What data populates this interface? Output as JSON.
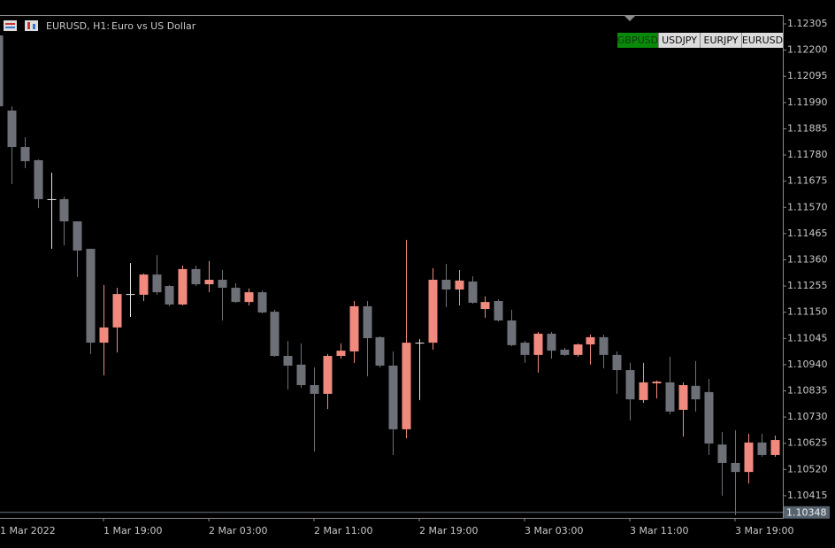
{
  "chart_data": {
    "type": "candlestick",
    "title": "EURUSD, H1:",
    "subtitle": "Euro vs US Dollar",
    "categories": [
      "1 Mar 2022",
      null,
      null,
      null,
      null,
      null,
      null,
      null,
      "1 Mar 19:00",
      null,
      null,
      null,
      null,
      null,
      null,
      null,
      "2 Mar 03:00",
      null,
      null,
      null,
      null,
      null,
      null,
      null,
      "2 Mar 11:00",
      null,
      null,
      null,
      null,
      null,
      null,
      null,
      "2 Mar 19:00",
      null,
      null,
      null,
      null,
      null,
      null,
      null,
      "3 Mar 03:00",
      null,
      null,
      null,
      null,
      null,
      null,
      null,
      "3 Mar 11:00",
      null,
      null,
      null,
      null,
      null,
      null,
      null,
      "3 Mar 19:00",
      null,
      null,
      null
    ],
    "open": [
      1.12259,
      1.11958,
      1.11812,
      1.11759,
      1.11603,
      1.11603,
      1.11514,
      1.11404,
      1.11028,
      1.11089,
      1.11223,
      1.1122,
      1.11301,
      1.11255,
      1.11181,
      1.11323,
      1.11262,
      1.1128,
      1.11248,
      1.11191,
      1.1123,
      1.11152,
      1.10975,
      1.1094,
      1.10858,
      1.10823,
      1.10975,
      1.10993,
      1.11174,
      1.1105,
      1.10936,
      1.10681,
      1.11028,
      1.11028,
      1.1128,
      1.11241,
      1.11273,
      1.11163,
      1.11195,
      1.11117,
      1.11028,
      1.10979,
      1.11064,
      1.11,
      1.10979,
      1.11021,
      1.1105,
      1.10979,
      1.10918,
      1.10798,
      1.10865,
      1.10869,
      1.10759,
      1.10855,
      1.1083,
      1.1062,
      1.10546,
      1.1051,
      1.10628,
      1.10578
    ],
    "high": [
      1.12277,
      1.11975,
      1.11851,
      1.11762,
      1.11709,
      1.11613,
      1.11514,
      1.11404,
      1.11259,
      1.11248,
      1.11347,
      1.11305,
      1.11379,
      1.11259,
      1.11337,
      1.11337,
      1.11355,
      1.11319,
      1.11266,
      1.11245,
      1.11237,
      1.1116,
      1.11035,
      1.11025,
      1.10929,
      1.10982,
      1.11025,
      1.11195,
      1.11195,
      1.11053,
      1.10993,
      1.1144,
      1.11042,
      1.11326,
      1.11344,
      1.11319,
      1.11294,
      1.11213,
      1.11202,
      1.1116,
      1.11035,
      1.11071,
      1.11071,
      1.11007,
      1.11025,
      1.1106,
      1.1106,
      1.10993,
      1.10947,
      1.10947,
      1.10876,
      1.10972,
      1.10869,
      1.10954,
      1.10883,
      1.1067,
      1.10677,
      1.10663,
      1.10663,
      1.10656
    ],
    "low": [
      1.11958,
      1.11663,
      1.11727,
      1.11567,
      1.11404,
      1.11418,
      1.11291,
      1.10982,
      1.10897,
      1.10989,
      1.11131,
      1.11195,
      1.1122,
      1.11174,
      1.11177,
      1.11255,
      1.1123,
      1.11117,
      1.11188,
      1.11177,
      1.11145,
      1.10972,
      1.1084,
      1.10847,
      1.10592,
      1.10762,
      1.10964,
      1.10947,
      1.10893,
      1.10929,
      1.10578,
      1.10645,
      1.10798,
      1.11,
      1.1117,
      1.11177,
      1.11184,
      1.11128,
      1.11113,
      1.11014,
      1.10947,
      1.10908,
      1.10964,
      1.10975,
      1.10972,
      1.1094,
      1.10925,
      1.10823,
      1.10716,
      1.10787,
      1.10805,
      1.10741,
      1.10652,
      1.10752,
      1.10578,
      1.10415,
      1.10337,
      1.10464,
      1.10571,
      1.10571
    ],
    "close": [
      1.11975,
      1.11812,
      1.11755,
      1.11603,
      1.11603,
      1.11514,
      1.11397,
      1.11028,
      1.11089,
      1.11223,
      1.11223,
      1.11301,
      1.1123,
      1.11181,
      1.11323,
      1.11262,
      1.1128,
      1.11248,
      1.11191,
      1.1123,
      1.11149,
      1.10975,
      1.10936,
      1.10858,
      1.10823,
      1.10975,
      1.10996,
      1.11174,
      1.11046,
      1.10936,
      1.10681,
      1.11028,
      1.11028,
      1.1128,
      1.11241,
      1.11277,
      1.11188,
      1.11191,
      1.11117,
      1.11018,
      1.10979,
      1.11064,
      1.10996,
      1.10979,
      1.11021,
      1.1105,
      1.10979,
      1.10918,
      1.10801,
      1.10869,
      1.10872,
      1.10752,
      1.10858,
      1.10801,
      1.10624,
      1.10546,
      1.1051,
      1.10628,
      1.10578,
      1.10638
    ],
    "up_color": "#f08a7e",
    "down_color": "#6d7177",
    "doji_color": "#e6e6e6",
    "ylim": [
      1.10326,
      1.12337
    ],
    "yticks": [
      1.12305,
      {
        "value": 1.122,
        "label": "1.12200"
      },
      1.12095,
      {
        "value": 1.1199,
        "label": "1.11990"
      },
      1.11885,
      {
        "value": 1.1178,
        "label": "1.11780"
      },
      1.11675,
      {
        "value": 1.1157,
        "label": "1.11570"
      },
      1.11465,
      {
        "value": 1.1136,
        "label": "1.11360"
      },
      1.11255,
      {
        "value": 1.1115,
        "label": "1.11150"
      },
      1.11045,
      {
        "value": 1.1094,
        "label": "1.10940"
      },
      1.10835,
      {
        "value": 1.1073,
        "label": "1.10730"
      },
      1.10625,
      {
        "value": 1.1052,
        "label": "1.10520"
      },
      1.10415
    ],
    "price_line": 1.10348,
    "grid": false
  },
  "toolbar": {
    "symbol_tabs": [
      "GBPUSD",
      "USDJPY",
      "EURJPY",
      "EURUSD"
    ]
  }
}
